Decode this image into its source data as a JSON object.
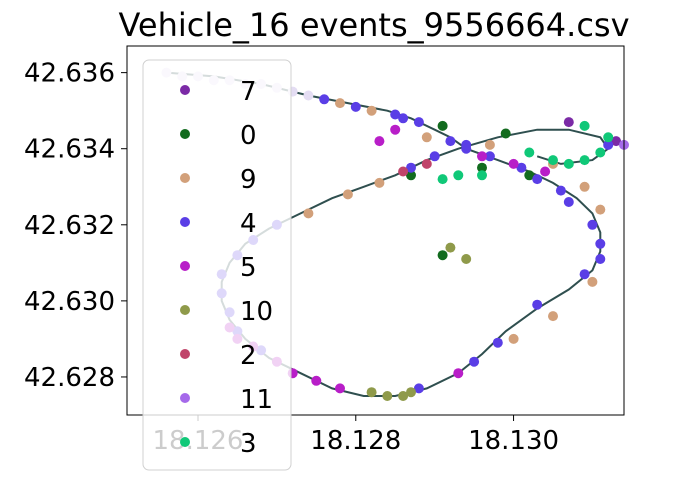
{
  "chart_data": {
    "type": "scatter",
    "title": "Vehicle_16 events_9556664.csv",
    "xlabel": "",
    "ylabel": "",
    "xlim": [
      18.1251,
      18.1314
    ],
    "ylim": [
      42.627,
      42.6367
    ],
    "x_ticks": [
      "18.126",
      "18.128",
      "18.130"
    ],
    "y_ticks": [
      "42.628",
      "42.630",
      "42.632",
      "42.634",
      "42.636"
    ],
    "grid": false,
    "legend_placement": "upper-left",
    "track_color": "#2f4f4f",
    "path": [
      [
        18.1256,
        42.636
      ],
      [
        18.1262,
        42.6359
      ],
      [
        18.1268,
        42.6357
      ],
      [
        18.1274,
        42.6354
      ],
      [
        18.1279,
        42.6352
      ],
      [
        18.1284,
        42.635
      ],
      [
        18.1287,
        42.6348
      ],
      [
        18.129,
        42.6345
      ],
      [
        18.1292,
        42.6343
      ],
      [
        18.1294,
        42.634
      ],
      [
        18.1298,
        42.6337
      ],
      [
        18.1302,
        42.6334
      ],
      [
        18.1305,
        42.6331
      ],
      [
        18.1308,
        42.6327
      ],
      [
        18.131,
        42.6323
      ],
      [
        18.1311,
        42.6318
      ],
      [
        18.1311,
        42.6313
      ],
      [
        18.131,
        42.6308
      ],
      [
        18.1307,
        42.6303
      ],
      [
        18.1303,
        42.6298
      ],
      [
        18.1299,
        42.6292
      ],
      [
        18.1296,
        42.6286
      ],
      [
        18.1293,
        42.6281
      ],
      [
        18.1289,
        42.6277
      ],
      [
        18.1285,
        42.6275
      ],
      [
        18.1281,
        42.6275
      ],
      [
        18.1277,
        42.6277
      ],
      [
        18.1273,
        42.6281
      ],
      [
        18.1269,
        42.6285
      ],
      [
        18.1266,
        42.629
      ],
      [
        18.1264,
        42.6295
      ],
      [
        18.1263,
        42.63
      ],
      [
        18.1263,
        42.6305
      ],
      [
        18.1264,
        42.631
      ],
      [
        18.1266,
        42.6315
      ],
      [
        18.1269,
        42.6319
      ],
      [
        18.1273,
        42.6323
      ],
      [
        18.1277,
        42.6327
      ],
      [
        18.1281,
        42.633
      ],
      [
        18.1285,
        42.6333
      ],
      [
        18.1289,
        42.6337
      ],
      [
        18.1293,
        42.634
      ],
      [
        18.1298,
        42.6343
      ],
      [
        18.1303,
        42.6345
      ],
      [
        18.1307,
        42.6345
      ],
      [
        18.1311,
        42.6343
      ],
      [
        18.1312,
        42.634
      ],
      [
        18.131,
        42.6337
      ],
      [
        18.1306,
        42.6336
      ],
      [
        18.1303,
        42.6338
      ]
    ],
    "series": [
      {
        "name": "7",
        "color": "#7b2aa6",
        "points": [
          [
            18.1313,
            42.6342
          ],
          [
            18.1307,
            42.6347
          ]
        ]
      },
      {
        "name": "0",
        "color": "#126b1e",
        "points": [
          [
            18.1291,
            42.6346
          ],
          [
            18.1299,
            42.6344
          ],
          [
            18.1287,
            42.6333
          ],
          [
            18.1291,
            42.6312
          ],
          [
            18.1296,
            42.6335
          ],
          [
            18.1302,
            42.6333
          ]
        ]
      },
      {
        "name": "9",
        "color": "#d2a07a",
        "points": [
          [
            18.1278,
            42.6352
          ],
          [
            18.1282,
            42.635
          ],
          [
            18.1289,
            42.6343
          ],
          [
            18.1297,
            42.6341
          ],
          [
            18.1305,
            42.6336
          ],
          [
            18.1309,
            42.633
          ],
          [
            18.1311,
            42.6324
          ],
          [
            18.131,
            42.6305
          ],
          [
            18.1305,
            42.6296
          ],
          [
            18.13,
            42.629
          ],
          [
            18.1274,
            42.6323
          ],
          [
            18.1279,
            42.6328
          ],
          [
            18.1283,
            42.6331
          ]
        ]
      },
      {
        "name": "4",
        "color": "#5a3ee6",
        "points": [
          [
            18.1285,
            42.6349
          ],
          [
            18.1288,
            42.6347
          ],
          [
            18.1292,
            42.6342
          ],
          [
            18.1294,
            42.634
          ],
          [
            18.1297,
            42.6338
          ],
          [
            18.1301,
            42.6335
          ],
          [
            18.1303,
            42.6332
          ],
          [
            18.1306,
            42.6329
          ],
          [
            18.131,
            42.632
          ],
          [
            18.1311,
            42.6315
          ],
          [
            18.1311,
            42.6311
          ],
          [
            18.1309,
            42.6307
          ],
          [
            18.1303,
            42.6299
          ],
          [
            18.1298,
            42.6289
          ],
          [
            18.1295,
            42.6284
          ],
          [
            18.1288,
            42.6277
          ],
          [
            18.1268,
            42.6287
          ],
          [
            18.1265,
            42.6292
          ],
          [
            18.1264,
            42.6297
          ],
          [
            18.1263,
            42.6302
          ],
          [
            18.1263,
            42.6307
          ],
          [
            18.1265,
            42.6312
          ],
          [
            18.1267,
            42.6316
          ],
          [
            18.127,
            42.632
          ],
          [
            18.1287,
            42.6335
          ],
          [
            18.129,
            42.6338
          ],
          [
            18.1294,
            42.6341
          ],
          [
            18.1276,
            42.6353
          ],
          [
            18.128,
            42.6351
          ],
          [
            18.1286,
            42.6348
          ],
          [
            18.1307,
            42.6326
          ],
          [
            18.1312,
            42.6341
          ]
        ]
      },
      {
        "name": "5",
        "color": "#b81ec8",
        "points": [
          [
            18.1264,
            42.6293
          ],
          [
            18.1265,
            42.629
          ],
          [
            18.1267,
            42.6288
          ],
          [
            18.127,
            42.6284
          ],
          [
            18.1272,
            42.6281
          ],
          [
            18.1275,
            42.6279
          ],
          [
            18.1278,
            42.6277
          ],
          [
            18.1293,
            42.6281
          ],
          [
            18.1296,
            42.6338
          ],
          [
            18.13,
            42.6336
          ],
          [
            18.1304,
            42.6334
          ],
          [
            18.1285,
            42.6345
          ],
          [
            18.1283,
            42.6342
          ]
        ]
      },
      {
        "name": "10",
        "color": "#8f9a4a",
        "points": [
          [
            18.1282,
            42.6276
          ],
          [
            18.1284,
            42.6275
          ],
          [
            18.1286,
            42.6275
          ],
          [
            18.1287,
            42.6276
          ],
          [
            18.1292,
            42.6314
          ],
          [
            18.1294,
            42.6311
          ]
        ]
      },
      {
        "name": "2",
        "color": "#c0446a",
        "points": [
          [
            18.1286,
            42.6334
          ],
          [
            18.1289,
            42.6336
          ]
        ]
      },
      {
        "name": "11",
        "color": "#a569ea",
        "points": [
          [
            18.1314,
            42.6341
          ]
        ]
      },
      {
        "name": "3",
        "color": "#10c878",
        "points": [
          [
            18.1302,
            42.6339
          ],
          [
            18.1305,
            42.6337
          ],
          [
            18.1307,
            42.6336
          ],
          [
            18.1309,
            42.6337
          ],
          [
            18.1311,
            42.6339
          ],
          [
            18.1312,
            42.6343
          ],
          [
            18.1309,
            42.6346
          ],
          [
            18.1291,
            42.6332
          ],
          [
            18.1293,
            42.6333
          ],
          [
            18.1296,
            42.6333
          ]
        ]
      },
      {
        "name": "",
        "color": "#e4ddf3",
        "points": [
          [
            18.1256,
            42.636
          ],
          [
            18.1258,
            42.6359
          ],
          [
            18.126,
            42.6359
          ],
          [
            18.1262,
            42.6358
          ],
          [
            18.1264,
            42.6358
          ],
          [
            18.1266,
            42.6357
          ],
          [
            18.1268,
            42.6357
          ],
          [
            18.127,
            42.6356
          ],
          [
            18.1272,
            42.6355
          ],
          [
            18.1274,
            42.6354
          ]
        ]
      }
    ]
  }
}
